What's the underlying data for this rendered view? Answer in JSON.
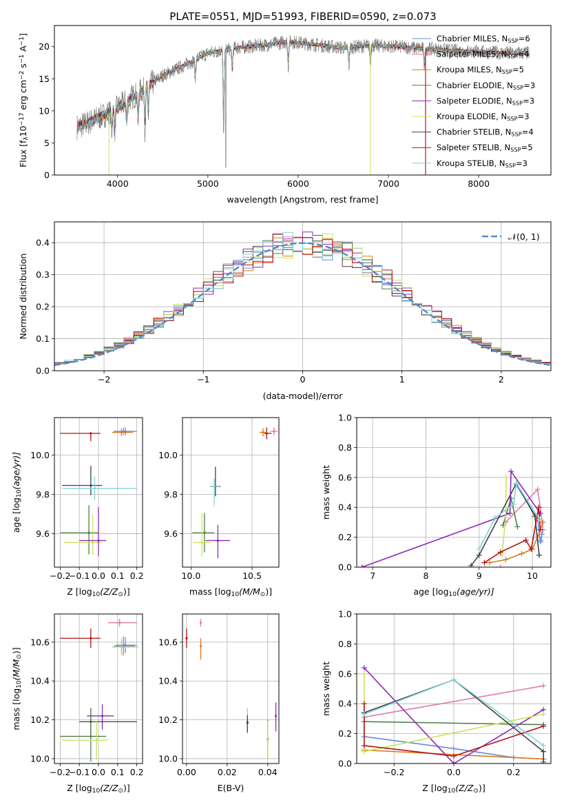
{
  "figure_title": "PLATE=0551, MJD=51993, FIBERID=0590, z=0.073",
  "models": [
    {
      "name": "Chabrier MILES",
      "n": "6",
      "color": "#6688dd"
    },
    {
      "name": "Salpeter MILES",
      "n": "4",
      "color": "#e07aa8"
    },
    {
      "name": "Kroupa MILES",
      "n": "5",
      "color": "#d97a1a"
    },
    {
      "name": "Chabrier ELODIE",
      "n": "3",
      "color": "#4f7d4f"
    },
    {
      "name": "Salpeter ELODIE",
      "n": "3",
      "color": "#8a2bb0"
    },
    {
      "name": "Kroupa ELODIE",
      "n": "3",
      "color": "#cbe35a"
    },
    {
      "name": "Chabrier STELIB",
      "n": "4",
      "color": "#404040"
    },
    {
      "name": "Salpeter STELIB",
      "n": "5",
      "color": "#b01010"
    },
    {
      "name": "Kroupa STELIB",
      "n": "3",
      "color": "#7fd4d9"
    }
  ],
  "legend_suffix": "N",
  "legend_sub": "SSP",
  "chart_data": [
    {
      "id": "spectrum",
      "type": "line",
      "xlabel": "wavelength [Angstrom, rest frame]",
      "ylabel": "Flux [f",
      "ylabel_parts": [
        "Flux [f",
        "λ",
        "10",
        "−17",
        " erg cm",
        "−2",
        " s",
        "−1",
        " A",
        "−1",
        "]"
      ],
      "xlim": [
        3300,
        8800
      ],
      "ylim": [
        0,
        23.3
      ],
      "xticks": [
        4000,
        5000,
        6000,
        7000,
        8000
      ],
      "yticks": [
        0,
        5,
        10,
        15,
        20
      ],
      "continuum_x": [
        3550,
        3650,
        3800,
        3950,
        4100,
        4300,
        4500,
        4800,
        5000,
        5300,
        5600,
        5900,
        6200,
        6500,
        6800,
        7100,
        7400,
        7700,
        8000,
        8300,
        8550
      ],
      "continuum_y": [
        7.5,
        8.0,
        9.0,
        10.0,
        11.5,
        13.5,
        15.5,
        17.5,
        19.0,
        19.8,
        20.2,
        20.8,
        20.3,
        19.8,
        20.2,
        20.0,
        19.7,
        19.4,
        19.2,
        19.0,
        19.0
      ],
      "absorption_lines": [
        [
          3934,
          3.2
        ],
        [
          3969,
          3.5
        ],
        [
          4101,
          4
        ],
        [
          4227,
          5
        ],
        [
          4304,
          6.5
        ],
        [
          4340,
          5
        ],
        [
          4861,
          3
        ],
        [
          5175,
          14
        ],
        [
          5270,
          4
        ],
        [
          5890,
          4
        ],
        [
          6563,
          3
        ],
        [
          6800,
          3
        ],
        [
          7400,
          3
        ]
      ],
      "grid": false,
      "legend": "top-right"
    },
    {
      "id": "residuals",
      "type": "histogram",
      "xlabel": "(data-model)/error",
      "ylabel": "Normed distribution",
      "xlim": [
        -2.5,
        2.5
      ],
      "ylim": [
        0,
        0.465
      ],
      "xticks": [
        -2,
        -1,
        0,
        1,
        2
      ],
      "yticks": [
        0,
        0.1,
        0.2,
        0.3,
        0.4
      ],
      "bin_width": 0.1,
      "reference_label": "𝒩(0, 1)",
      "reference_color": "#5588cc",
      "grid": true,
      "legend": "top-right"
    },
    {
      "id": "age_vs_Z",
      "type": "scatter",
      "xlabel": "Z [log",
      "xlabel_parts": [
        "Z [log",
        "10",
        "(Z/Z",
        "⊙",
        ")]"
      ],
      "ylabel": "age  [log",
      "ylabel_parts": [
        "age  [log",
        "10",
        "(age/yr)]"
      ],
      "xlim": [
        -0.23,
        0.23
      ],
      "ylim": [
        9.43,
        10.19
      ],
      "xticks": [
        -0.2,
        -0.1,
        0.0,
        0.1,
        0.2
      ],
      "yticks": [
        9.6,
        9.8,
        10.0
      ],
      "points": [
        {
          "m": 7,
          "x": -0.04,
          "y": 10.11,
          "xe": [
            0.16,
            0.05
          ],
          "ye": [
            0.04,
            0.0
          ]
        },
        {
          "m": 1,
          "x": 0.13,
          "y": 10.12,
          "xe": [
            0.05,
            0.06
          ],
          "ye": [
            0.02,
            0.02
          ]
        },
        {
          "m": 2,
          "x": 0.12,
          "y": 10.115,
          "xe": [
            0.05,
            0.06
          ],
          "ye": [
            0.02,
            0.02
          ]
        },
        {
          "m": 0,
          "x": 0.14,
          "y": 10.12,
          "xe": [
            0.06,
            0.06
          ],
          "ye": [
            0.02,
            0.02
          ]
        },
        {
          "m": 6,
          "x": -0.04,
          "y": 9.845,
          "xe": [
            0.15,
            0.06
          ],
          "ye": [
            0.05,
            0.1
          ]
        },
        {
          "m": 8,
          "x": -0.02,
          "y": 9.83,
          "xe": [
            0.17,
            0.22
          ],
          "ye": [
            0.06,
            0.06
          ]
        },
        {
          "m": 3,
          "x": -0.05,
          "y": 9.605,
          "xe": [
            0.15,
            0.05
          ],
          "ye": [
            0.11,
            0.14
          ]
        },
        {
          "m": 5,
          "x": -0.03,
          "y": 9.555,
          "xe": [
            0.15,
            0.05
          ],
          "ye": [
            0.06,
            0.14
          ]
        },
        {
          "m": 4,
          "x": 0.0,
          "y": 9.565,
          "xe": [
            0.1,
            0.04
          ],
          "ye": [
            0.08,
            0.17
          ]
        }
      ],
      "grid": true
    },
    {
      "id": "age_vs_mass",
      "type": "scatter",
      "xlabel": "mass [log",
      "xlabel_parts": [
        "mass [log",
        "10",
        "(M/M",
        "⊙",
        ")]"
      ],
      "ylabel": "",
      "xlim": [
        9.93,
        10.72
      ],
      "ylim": [
        9.43,
        10.19
      ],
      "xticks": [
        10.0,
        10.5
      ],
      "yticks": [
        9.6,
        9.8,
        10.0
      ],
      "points": [
        {
          "m": 7,
          "x": 10.62,
          "y": 10.11,
          "xe": [
            0.02,
            0.04
          ],
          "ye": [
            0.03,
            0.03
          ]
        },
        {
          "m": 2,
          "x": 10.59,
          "y": 10.115,
          "xe": [
            0.03,
            0.03
          ],
          "ye": [
            0.02,
            0.02
          ]
        },
        {
          "m": 1,
          "x": 10.68,
          "y": 10.12,
          "xe": [
            0.03,
            0.03
          ],
          "ye": [
            0.02,
            0.02
          ]
        },
        {
          "m": 6,
          "x": 10.2,
          "y": 9.84,
          "xe": [
            0.04,
            0.04
          ],
          "ye": [
            0.05,
            0.1
          ]
        },
        {
          "m": 8,
          "x": 10.19,
          "y": 9.84,
          "xe": [
            0.04,
            0.04
          ],
          "ye": [
            0.1,
            0.04
          ]
        },
        {
          "m": 3,
          "x": 10.11,
          "y": 9.605,
          "xe": [
            0.1,
            0.08
          ],
          "ye": [
            0.1,
            0.1
          ]
        },
        {
          "m": 5,
          "x": 10.09,
          "y": 9.555,
          "xe": [
            0.07,
            0.07
          ],
          "ye": [
            0.07,
            0.15
          ]
        },
        {
          "m": 4,
          "x": 10.22,
          "y": 9.565,
          "xe": [
            0.1,
            0.1
          ],
          "ye": [
            0.09,
            0.08
          ]
        }
      ],
      "grid": true
    },
    {
      "id": "weight_vs_age",
      "type": "line",
      "xlabel": "age  [log",
      "xlabel_parts": [
        "age  [log",
        "10",
        "(age/yr)]"
      ],
      "ylabel": "mass weight",
      "xlim": [
        6.7,
        10.35
      ],
      "ylim": [
        0,
        1
      ],
      "xticks": [
        7,
        8,
        9,
        10
      ],
      "yticks": [
        0,
        0.2,
        0.4,
        0.6,
        0.8,
        1.0
      ],
      "series": [
        {
          "m": 0,
          "x": [
            9.7,
            10.1,
            10.15,
            10.16,
            10.18,
            10.2
          ],
          "y": [
            0.55,
            0.32,
            0.18,
            0.17,
            0.22,
            0.25
          ]
        },
        {
          "m": 1,
          "x": 9.4,
          "y": 0
        },
        {
          "m": 1,
          "x": [
            9.5,
            10.1,
            10.15,
            10.2
          ],
          "y": [
            0.3,
            0.52,
            0.4,
            0.25
          ]
        },
        {
          "m": 2,
          "x": [
            9.2,
            9.5,
            9.8,
            10.0,
            10.1,
            10.2
          ],
          "y": [
            0.03,
            0.05,
            0.09,
            0.12,
            0.2,
            0.3
          ]
        },
        {
          "m": 3,
          "x": [
            9.45,
            9.6,
            9.72
          ],
          "y": [
            0.28,
            0.46,
            0.27
          ]
        },
        {
          "m": 4,
          "x": [
            6.8,
            9.58,
            9.6,
            10.15
          ],
          "y": [
            0.0,
            0.36,
            0.64,
            0.36
          ]
        },
        {
          "m": 5,
          "x": [
            9.43,
            9.5,
            9.51
          ],
          "y": [
            0.08,
            0.33,
            0.6
          ]
        },
        {
          "m": 6,
          "x": [
            8.85,
            9.0,
            9.7,
            10.05,
            10.13
          ],
          "y": [
            0.01,
            0.08,
            0.56,
            0.34,
            0.08
          ]
        },
        {
          "m": 7,
          "x": [
            9.1,
            9.4,
            9.88,
            9.98,
            10.12,
            10.15
          ],
          "y": [
            0.03,
            0.1,
            0.18,
            0.12,
            0.4,
            0.25
          ]
        },
        {
          "m": 8,
          "x": [
            9.0,
            9.3,
            9.65,
            9.7,
            10.13
          ],
          "y": [
            0.12,
            0.33,
            0.42,
            0.56,
            0.32
          ]
        }
      ],
      "grid": true
    },
    {
      "id": "mass_vs_Z",
      "type": "scatter",
      "xlabel": "Z [log",
      "xlabel_parts": [
        "Z [log",
        "10",
        "(Z/Z",
        "⊙",
        ")]"
      ],
      "ylabel": "mass [log",
      "ylabel_parts": [
        "mass [log",
        "10",
        "(M/M",
        "⊙",
        ")]"
      ],
      "xlim": [
        -0.23,
        0.23
      ],
      "ylim": [
        9.975,
        10.745
      ],
      "xticks": [
        -0.2,
        -0.1,
        0.0,
        0.1,
        0.2
      ],
      "yticks": [
        10.0,
        10.2,
        10.4,
        10.6
      ],
      "points": [
        {
          "m": 7,
          "x": -0.04,
          "y": 10.62,
          "xe": [
            0.16,
            0.05
          ],
          "ye": [
            0.05,
            0.05
          ]
        },
        {
          "m": 1,
          "x": 0.11,
          "y": 10.7,
          "xe": [
            0.06,
            0.09
          ],
          "ye": [
            0.02,
            0.02
          ]
        },
        {
          "m": 2,
          "x": 0.13,
          "y": 10.58,
          "xe": [
            0.05,
            0.06
          ],
          "ye": [
            0.05,
            0.05
          ]
        },
        {
          "m": 0,
          "x": 0.14,
          "y": 10.585,
          "xe": [
            0.05,
            0.06
          ],
          "ye": [
            0.04,
            0.04
          ]
        },
        {
          "m": 8,
          "x": 0.12,
          "y": 10.575,
          "xe": [
            0.05,
            0.09
          ],
          "ye": [
            0.04,
            0.04
          ]
        },
        {
          "m": 4,
          "x": 0.02,
          "y": 10.22,
          "xe": [
            0.08,
            0.06
          ],
          "ye": [
            0.07,
            0.06
          ]
        },
        {
          "m": 6,
          "x": -0.04,
          "y": 10.19,
          "xe": [
            0.06,
            0.24
          ],
          "ye": [
            0.07,
            0.07
          ]
        },
        {
          "m": 3,
          "x": -0.04,
          "y": 10.115,
          "xe": [
            0.16,
            0.08
          ],
          "ye": [
            0.13,
            0.14
          ]
        },
        {
          "m": 5,
          "x": -0.01,
          "y": 10.095,
          "xe": [
            0.18,
            0.06
          ],
          "ye": [
            0.1,
            0.1
          ]
        }
      ],
      "grid": true
    },
    {
      "id": "mass_vs_ebv",
      "type": "scatter",
      "xlabel": "E(B-V)",
      "ylabel": "",
      "xlim": [
        -0.002,
        0.0455
      ],
      "ylim": [
        9.975,
        10.745
      ],
      "xticks": [
        0.0,
        0.02,
        0.04
      ],
      "yticks": [
        10.0,
        10.2,
        10.4,
        10.6
      ],
      "points": [
        {
          "m": 7,
          "x": 0.0,
          "y": 10.62,
          "xe": [
            0,
            0
          ],
          "ye": [
            0.05,
            0.05
          ]
        },
        {
          "m": 1,
          "x": 0.007,
          "y": 10.7,
          "xe": [
            0,
            0
          ],
          "ye": [
            0.02,
            0.02
          ]
        },
        {
          "m": 2,
          "x": 0.007,
          "y": 10.58,
          "xe": [
            0,
            0
          ],
          "ye": [
            0.07,
            0.04
          ]
        },
        {
          "m": 8,
          "x": 0.03,
          "y": 10.19,
          "xe": [
            0,
            0
          ],
          "ye": [
            0.06,
            0.07
          ]
        },
        {
          "m": 6,
          "x": 0.03,
          "y": 10.185,
          "xe": [
            0,
            0
          ],
          "ye": [
            0.05,
            0.04
          ]
        },
        {
          "m": 3,
          "x": 0.04,
          "y": 10.1,
          "xe": [
            0,
            0
          ],
          "ye": [
            0.1,
            0.1
          ]
        },
        {
          "m": 5,
          "x": 0.04,
          "y": 10.095,
          "xe": [
            0,
            0
          ],
          "ye": [
            0.1,
            0.1
          ]
        },
        {
          "m": 4,
          "x": 0.044,
          "y": 10.22,
          "xe": [
            0,
            0
          ],
          "ye": [
            0.08,
            0.07
          ]
        }
      ],
      "grid": true
    },
    {
      "id": "weight_vs_Z",
      "type": "line",
      "xlabel": "Z [log",
      "xlabel_parts": [
        "Z [log",
        "10",
        "(Z/Z",
        "⊙",
        ")]"
      ],
      "ylabel": "mass weight",
      "xlim": [
        -0.325,
        0.325
      ],
      "ylim": [
        0,
        1
      ],
      "xticks": [
        -0.2,
        0.0,
        0.2
      ],
      "yticks": [
        0,
        0.2,
        0.4,
        0.6,
        0.8,
        1.0
      ],
      "series": [
        {
          "m": 0,
          "x": [
            -0.3,
            -0.3,
            0.0,
            0.2,
            0.3
          ],
          "y": [
            0.34,
            0.18,
            0.1,
            0.04,
            0.03
          ]
        },
        {
          "m": 1,
          "x": [
            -0.3,
            0.3
          ],
          "y": [
            0.31,
            0.52
          ]
        },
        {
          "m": 2,
          "x": [
            -0.3,
            0.3
          ],
          "y": [
            0.09,
            0.03
          ]
        },
        {
          "m": 3,
          "x": [
            -0.3,
            0.3
          ],
          "y": [
            0.28,
            0.26
          ]
        },
        {
          "m": 4,
          "x": [
            -0.3,
            0.0,
            0.3
          ],
          "y": [
            0.64,
            0.0,
            0.36
          ]
        },
        {
          "m": 5,
          "x": [
            -0.3,
            -0.3,
            0.3
          ],
          "y": [
            0.6,
            0.08,
            0.33
          ]
        },
        {
          "m": 6,
          "x": [
            -0.3,
            0.0,
            0.3,
            0.3
          ],
          "y": [
            0.34,
            0.56,
            0.08,
            0.01
          ]
        },
        {
          "m": 7,
          "x": [
            -0.3,
            -0.3,
            0.0,
            0.3
          ],
          "y": [
            0.4,
            0.12,
            0.05,
            0.25
          ]
        },
        {
          "m": 8,
          "x": [
            -0.3,
            0.0,
            0.3
          ],
          "y": [
            0.33,
            0.56,
            0.12
          ]
        }
      ],
      "grid": true
    }
  ]
}
